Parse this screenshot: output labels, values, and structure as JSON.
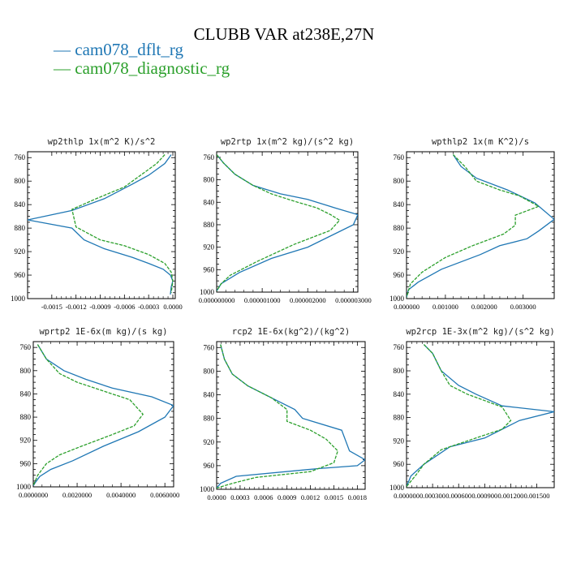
{
  "title": "CLUBB VAR at238E,27N",
  "legend": [
    {
      "label": "cam078_dflt_rg",
      "color": "#1f77b4",
      "dash": "solid"
    },
    {
      "label": "cam078_diagnostic_rg",
      "color": "#2ca02c",
      "dash": "dashed"
    }
  ],
  "chart_data": [
    {
      "type": "line",
      "title": "wp2thlp  1x(m^2 K)/s^2",
      "xlim": [
        -0.0018,
        3e-05
      ],
      "ylim": [
        1000,
        750
      ],
      "yticks": [
        "760",
        "800",
        "840",
        "880",
        "920",
        "960",
        "1000"
      ],
      "xticks": [
        {
          "v": -0.0015,
          "label": "-0.0015"
        },
        {
          "v": -0.0012,
          "label": "-0.0012"
        },
        {
          "v": -0.0009,
          "label": "-0.0009"
        },
        {
          "v": -0.0006,
          "label": "-0.0006"
        },
        {
          "v": -0.0003,
          "label": "-0.0003"
        },
        {
          "v": 0.0,
          "label": "0.0000"
        }
      ],
      "series": [
        {
          "name": "cam078_dflt_rg",
          "x": [
            -2e-05,
            -0.0001,
            -0.0003,
            -0.0005,
            -0.00085,
            -0.00125,
            -0.0018,
            -0.00125,
            -0.0011,
            -0.00085,
            -0.0005,
            -0.0003,
            -0.00012,
            -3e-05,
            0.0,
            -2e-05,
            -3e-05
          ],
          "y": [
            755,
            770,
            790,
            805,
            830,
            850,
            866,
            880,
            900,
            915,
            930,
            940,
            950,
            960,
            970,
            980,
            993
          ]
        },
        {
          "name": "cam078_diagnostic_rg",
          "x": [
            -0.0001,
            -0.0002,
            -0.0004,
            -0.0006,
            -0.00095,
            -0.00125,
            -0.0012,
            -0.0009,
            -0.0006,
            -0.0003,
            -0.0001,
            -2e-05,
            0.0,
            -2e-05
          ],
          "y": [
            755,
            770,
            790,
            810,
            830,
            848,
            878,
            900,
            910,
            925,
            940,
            955,
            970,
            990
          ]
        }
      ]
    },
    {
      "type": "line",
      "title": "wp2rtp  1x(m^2 kg)/(s^2 kg)",
      "xlim": [
        0,
        3.1e-06
      ],
      "ylim": [
        1000,
        750
      ],
      "yticks": [
        "760",
        "800",
        "840",
        "880",
        "920",
        "960",
        "1000"
      ],
      "xticks": [
        {
          "v": 0,
          "label": "0.000000000"
        },
        {
          "v": 1e-06,
          "label": "0.000001000"
        },
        {
          "v": 2e-06,
          "label": "0.000002000"
        },
        {
          "v": 3e-06,
          "label": "0.000003000"
        }
      ],
      "series": [
        {
          "name": "cam078_dflt_rg",
          "x": [
            0.0,
            1.5e-07,
            4e-07,
            8e-07,
            1.4e-06,
            2e-06,
            2.6e-06,
            3.1e-06,
            3e-06,
            2e-06,
            1.2e-06,
            5e-07,
            1e-07,
            0.0
          ],
          "y": [
            755,
            770,
            790,
            810,
            825,
            835,
            850,
            862,
            880,
            920,
            940,
            965,
            985,
            998
          ]
        },
        {
          "name": "cam078_diagnostic_rg",
          "x": [
            0.0,
            1.5e-07,
            4e-07,
            8e-07,
            1.2e-06,
            1.7e-06,
            2.2e-06,
            2.5e-06,
            2.7e-06,
            2.5e-06,
            1.7e-06,
            9e-07,
            3e-07,
            1e-07,
            0.0
          ],
          "y": [
            755,
            770,
            790,
            810,
            825,
            838,
            850,
            862,
            872,
            890,
            915,
            945,
            970,
            985,
            998
          ]
        }
      ]
    },
    {
      "type": "line",
      "title": "wpthlp2  1x(m K^2)/s",
      "xlim": [
        0,
        0.0038
      ],
      "ylim": [
        1000,
        750
      ],
      "yticks": [
        "760",
        "800",
        "840",
        "880",
        "920",
        "960",
        "1000"
      ],
      "xticks": [
        {
          "v": 0.0,
          "label": "0.000000"
        },
        {
          "v": 0.001,
          "label": "0.001000"
        },
        {
          "v": 0.002,
          "label": "0.002000"
        },
        {
          "v": 0.003,
          "label": "0.003000"
        }
      ],
      "series": [
        {
          "name": "cam078_dflt_rg",
          "x": [
            0.0012,
            0.0014,
            0.0018,
            0.0026,
            0.0033,
            0.0038,
            0.0034,
            0.0031,
            0.0024,
            0.0019,
            0.0009,
            0.0003,
            5e-05,
            0.0
          ],
          "y": [
            755,
            775,
            795,
            815,
            837,
            865,
            885,
            898,
            910,
            925,
            950,
            972,
            985,
            998
          ]
        },
        {
          "name": "cam078_diagnostic_rg",
          "x": [
            0.0012,
            0.0015,
            0.0018,
            0.0024,
            0.0029,
            0.0034,
            0.0028,
            0.0028,
            0.0025,
            0.0017,
            0.001,
            0.0004,
            0.0001,
            0.0
          ],
          "y": [
            755,
            775,
            800,
            815,
            825,
            843,
            858,
            875,
            890,
            910,
            930,
            955,
            975,
            998
          ]
        }
      ]
    },
    {
      "type": "line",
      "title": "wprtp2  1E-6x(m kg)/(s kg)",
      "xlim": [
        0,
        0.0064
      ],
      "ylim": [
        1000,
        750
      ],
      "yticks": [
        "760",
        "800",
        "840",
        "880",
        "920",
        "960",
        "1000"
      ],
      "xticks": [
        {
          "v": 0.0,
          "label": "0.0000000"
        },
        {
          "v": 0.002,
          "label": "0.0020000"
        },
        {
          "v": 0.004,
          "label": "0.0040000"
        },
        {
          "v": 0.006,
          "label": "0.0060000"
        }
      ],
      "series": [
        {
          "name": "cam078_dflt_rg",
          "x": [
            0.0002,
            0.0006,
            0.0014,
            0.0024,
            0.0036,
            0.0054,
            0.0064,
            0.006,
            0.0048,
            0.0032,
            0.0018,
            0.0008,
            0.0003,
            0.0001,
            0.0
          ],
          "y": [
            755,
            780,
            800,
            815,
            830,
            845,
            860,
            880,
            905,
            930,
            955,
            970,
            982,
            992,
            998
          ]
        },
        {
          "name": "cam078_diagnostic_rg",
          "x": [
            0.0002,
            0.0006,
            0.0012,
            0.002,
            0.0032,
            0.0044,
            0.005,
            0.0046,
            0.0036,
            0.0022,
            0.0012,
            0.0006,
            0.0002,
            0.0
          ],
          "y": [
            755,
            780,
            805,
            820,
            835,
            850,
            875,
            895,
            910,
            930,
            945,
            960,
            980,
            998
          ]
        }
      ]
    },
    {
      "type": "line",
      "title": "rcp2  1E-6x(kg^2)/(kg^2)",
      "xlim": [
        0,
        0.0019
      ],
      "ylim": [
        1000,
        750
      ],
      "yticks": [
        "760",
        "800",
        "840",
        "880",
        "920",
        "960",
        "1000"
      ],
      "xticks": [
        {
          "v": 0.0,
          "label": "0.0000"
        },
        {
          "v": 0.0003,
          "label": "0.0003"
        },
        {
          "v": 0.0006,
          "label": "0.0006"
        },
        {
          "v": 0.0009,
          "label": "0.0009"
        },
        {
          "v": 0.0012,
          "label": "0.0012"
        },
        {
          "v": 0.0015,
          "label": "0.0015"
        },
        {
          "v": 0.0018,
          "label": "0.0018"
        }
      ],
      "series": [
        {
          "name": "cam078_dflt_rg",
          "x": [
            5e-05,
            0.0001,
            0.0002,
            0.0004,
            0.0007,
            0.001,
            0.0011,
            0.0016,
            0.0017,
            0.0019,
            0.0018,
            0.0013,
            0.00025,
            5e-05,
            0.0
          ],
          "y": [
            755,
            780,
            805,
            825,
            845,
            865,
            880,
            900,
            935,
            950,
            960,
            965,
            978,
            990,
            998
          ]
        },
        {
          "name": "cam078_diagnostic_rg",
          "x": [
            5e-05,
            0.0001,
            0.0002,
            0.0004,
            0.0007,
            0.0009,
            0.0009,
            0.0012,
            0.0014,
            0.00155,
            0.0015,
            0.0012,
            0.0005,
            0.0002,
            0.0
          ],
          "y": [
            755,
            780,
            805,
            825,
            845,
            865,
            885,
            900,
            915,
            935,
            955,
            970,
            980,
            990,
            998
          ]
        }
      ]
    },
    {
      "type": "line",
      "title": "wp2rcp  1E-3x(m^2 kg)/(s^2 kg)",
      "xlim": [
        0,
        0.0017
      ],
      "ylim": [
        1000,
        750
      ],
      "yticks": [
        "760",
        "800",
        "840",
        "880",
        "920",
        "960",
        "1000"
      ],
      "xticks": [
        {
          "v": 0.0,
          "label": "0.000000"
        },
        {
          "v": 0.0003,
          "label": "0.000300"
        },
        {
          "v": 0.0006,
          "label": "0.000600"
        },
        {
          "v": 0.0009,
          "label": "0.000900"
        },
        {
          "v": 0.0012,
          "label": "0.001200"
        },
        {
          "v": 0.0015,
          "label": "0.001500"
        }
      ],
      "series": [
        {
          "name": "cam078_dflt_rg",
          "x": [
            0.0002,
            0.0003,
            0.0004,
            0.0006,
            0.0008,
            0.0011,
            0.0017,
            0.0013,
            0.0011,
            0.0009,
            0.0005,
            0.0002,
            5e-05,
            0.0
          ],
          "y": [
            755,
            770,
            800,
            825,
            840,
            860,
            870,
            885,
            900,
            915,
            930,
            960,
            980,
            998
          ]
        },
        {
          "name": "cam078_diagnostic_rg",
          "x": [
            0.0002,
            0.0003,
            0.0004,
            0.0005,
            0.0007,
            0.0011,
            0.0012,
            0.0011,
            0.0008,
            0.0004,
            0.0002,
            0.0001,
            0.0
          ],
          "y": [
            755,
            770,
            800,
            825,
            840,
            862,
            885,
            900,
            915,
            935,
            960,
            980,
            998
          ]
        }
      ]
    }
  ]
}
